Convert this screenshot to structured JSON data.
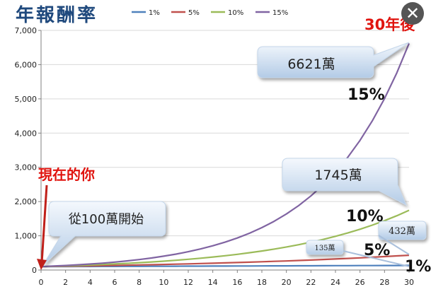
{
  "chart_data": {
    "type": "line",
    "title": "年報酬率",
    "x": [
      0,
      1,
      2,
      3,
      4,
      5,
      6,
      7,
      8,
      9,
      10,
      11,
      12,
      13,
      14,
      15,
      16,
      17,
      18,
      19,
      20,
      21,
      22,
      23,
      24,
      25,
      26,
      27,
      28,
      29,
      30
    ],
    "x_ticks": [
      "0",
      "2",
      "4",
      "6",
      "8",
      "10",
      "12",
      "14",
      "16",
      "18",
      "20",
      "22",
      "24",
      "26",
      "28",
      "30"
    ],
    "y_ticks": [
      "0",
      "1,000",
      "2,000",
      "3,000",
      "4,000",
      "5,000",
      "6,000",
      "7,000"
    ],
    "xlim": [
      0,
      30
    ],
    "ylim": [
      0,
      7000
    ],
    "grid": "horizontal",
    "legend_position": "top",
    "series": [
      {
        "name": "1%",
        "color": "#4f81bd",
        "values": [
          100,
          101,
          102,
          103,
          104,
          105,
          106,
          107,
          108,
          109,
          110,
          112,
          113,
          114,
          115,
          116,
          117,
          118,
          120,
          121,
          122,
          123,
          124,
          126,
          127,
          128,
          130,
          131,
          132,
          133,
          135
        ]
      },
      {
        "name": "5%",
        "color": "#c0504d",
        "values": [
          100,
          105,
          110,
          116,
          122,
          128,
          134,
          141,
          148,
          155,
          163,
          171,
          180,
          189,
          198,
          208,
          218,
          229,
          241,
          253,
          265,
          279,
          292,
          307,
          323,
          339,
          356,
          373,
          392,
          412,
          432
        ]
      },
      {
        "name": "10%",
        "color": "#9bbb59",
        "values": [
          100,
          110,
          121,
          133,
          146,
          161,
          177,
          195,
          214,
          236,
          259,
          285,
          314,
          345,
          380,
          418,
          459,
          505,
          556,
          612,
          673,
          740,
          814,
          895,
          985,
          1083,
          1192,
          1311,
          1442,
          1586,
          1745
        ]
      },
      {
        "name": "15%",
        "color": "#8064a2",
        "values": [
          100,
          115,
          132,
          152,
          175,
          201,
          231,
          266,
          306,
          352,
          405,
          465,
          535,
          615,
          708,
          814,
          936,
          1076,
          1238,
          1423,
          1637,
          1882,
          2164,
          2489,
          2863,
          3292,
          3786,
          4354,
          5007,
          5758,
          6621
        ]
      }
    ],
    "annotations": {
      "start_label": "現在的你",
      "start_callout": "從100萬開始",
      "end_label": "30年後",
      "callout_15": "6621萬",
      "callout_10": "1745萬",
      "callout_5": "432萬",
      "callout_1": "135萬",
      "rate_15": "15%",
      "rate_10": "10%",
      "rate_5": "5%",
      "rate_1": "1%"
    }
  },
  "ui": {
    "close_symbol": "✕"
  }
}
